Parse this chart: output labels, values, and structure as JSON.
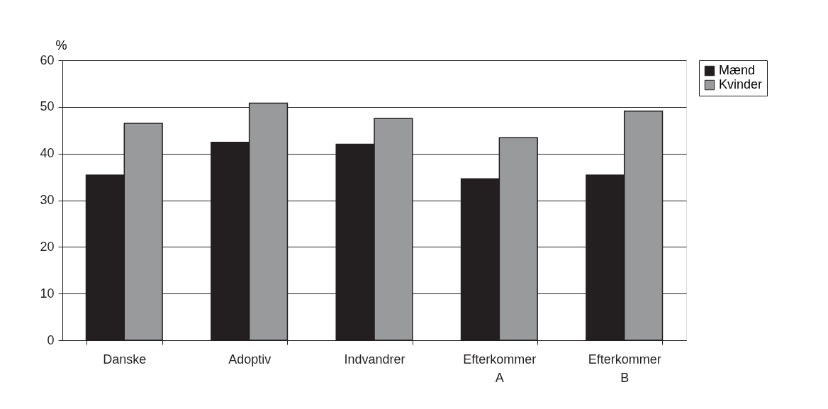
{
  "chart_data": {
    "type": "bar",
    "ylabel": "%",
    "categories": [
      "Danske",
      "Adoptiv",
      "Indvandrer",
      "Efterkommer\nA",
      "Efterkommer\nB"
    ],
    "series": [
      {
        "name": "Mænd",
        "color": "#231f20",
        "values": [
          35.4,
          42.4,
          42.0,
          34.6,
          35.4
        ]
      },
      {
        "name": "Kvinder",
        "color": "#999a9c",
        "values": [
          46.5,
          50.8,
          47.5,
          43.4,
          49.1
        ]
      }
    ],
    "ylim": [
      0,
      60
    ],
    "yticks": [
      0,
      10,
      20,
      30,
      40,
      50,
      60
    ],
    "grid": "y",
    "legend": "right"
  }
}
